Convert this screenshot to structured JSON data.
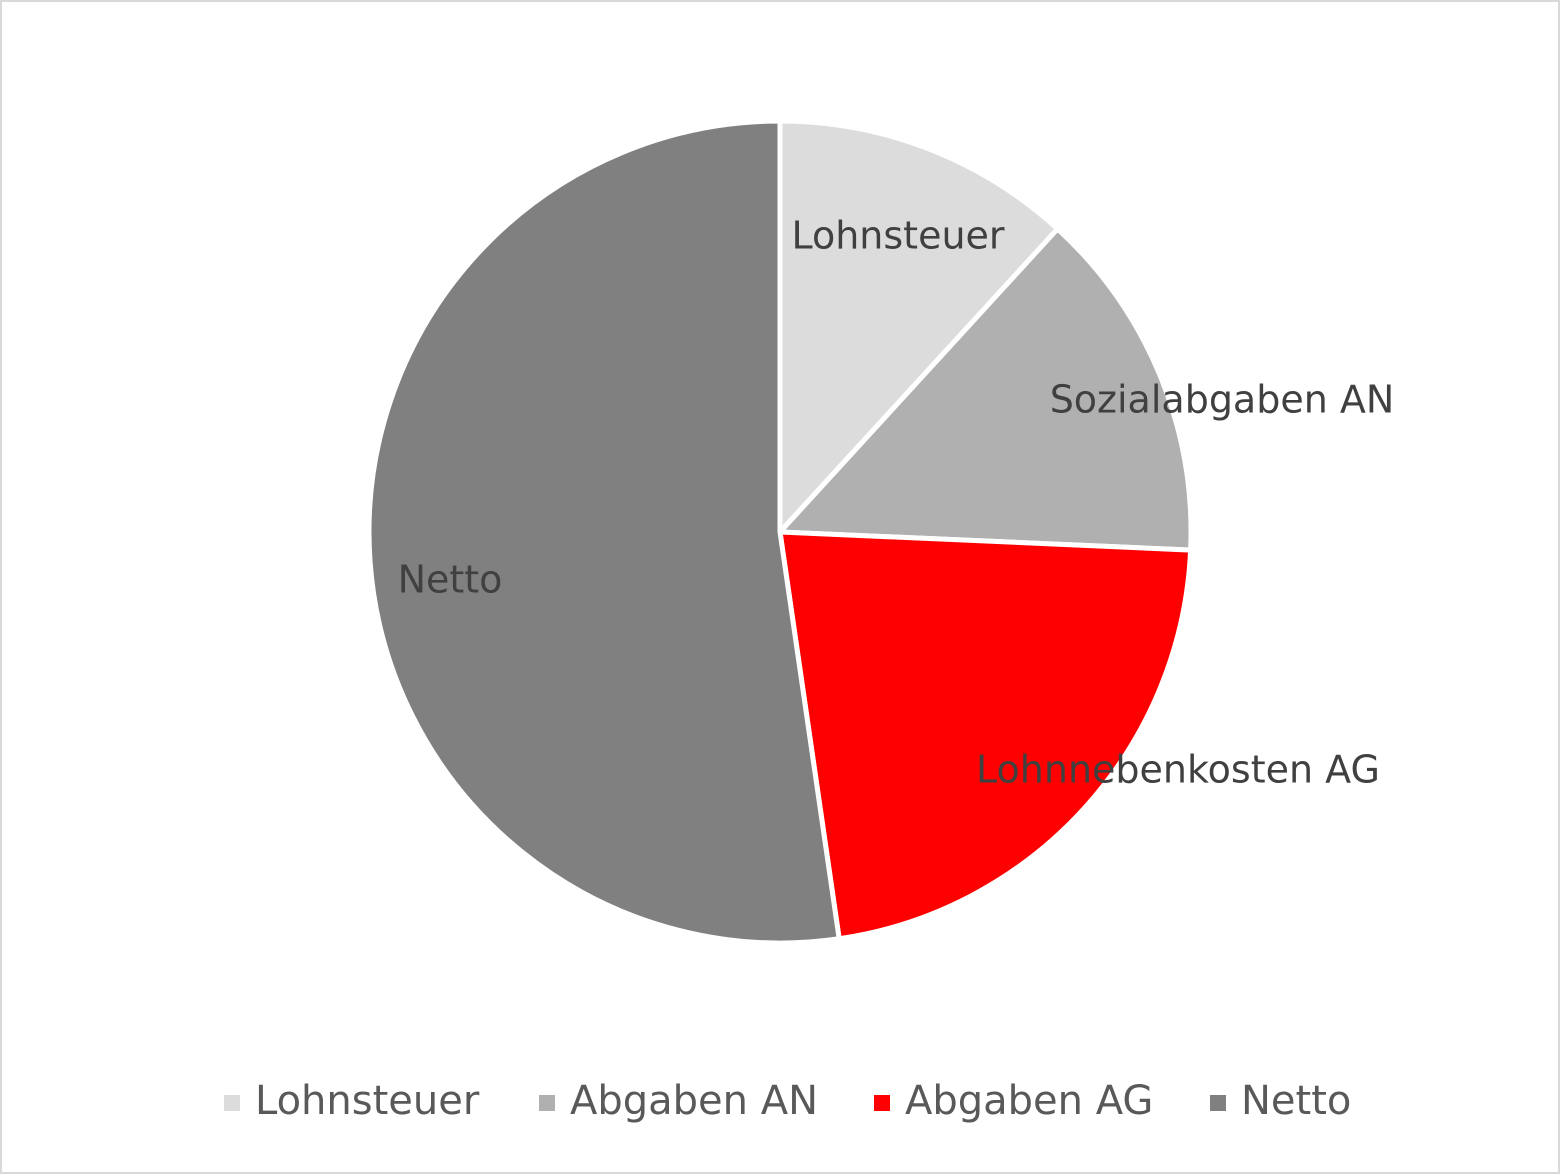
{
  "chart_data": {
    "type": "pie",
    "categories": [
      "Lohnsteuer",
      "Abgaben AN",
      "Abgaben AG",
      "Netto"
    ],
    "data_labels": [
      "Lohnsteuer",
      "Sozialabgaben AN",
      "Lohnnebenkosten AG",
      "Netto"
    ],
    "values": [
      11.8,
      13.9,
      22.0,
      52.3
    ],
    "colors": [
      "#dcdcdc",
      "#b0b0b0",
      "#ff0000",
      "#808080"
    ],
    "legend": "bottom"
  }
}
